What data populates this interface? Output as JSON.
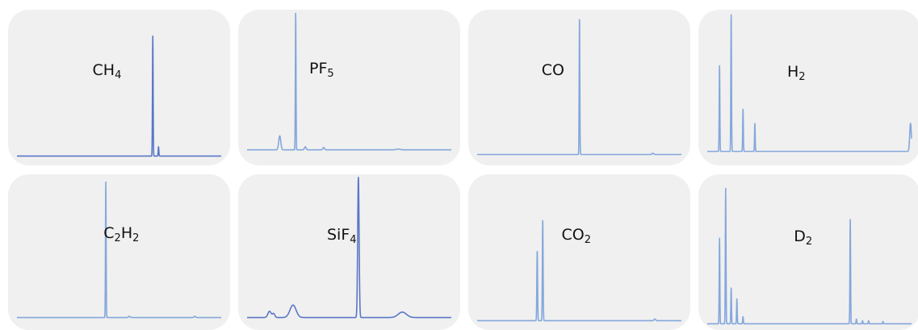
{
  "colors": {
    "panel_bg": "#f0f0f0",
    "trace_dark": "#5a77c8",
    "trace_light": "#84a7dc"
  },
  "chart_data": [
    {
      "type": "line",
      "label_base": [
        "CH",
        ""
      ],
      "label_sub": [
        "4",
        ""
      ],
      "trace": "trace_dark",
      "baseline": 0.06,
      "peaks": [
        {
          "x": 0.665,
          "h": 0.77,
          "w": 0.0016
        },
        {
          "x": 0.693,
          "h": 0.06,
          "w": 0.0016
        }
      ],
      "bumps": []
    },
    {
      "type": "line",
      "label_base": [
        "PF",
        ""
      ],
      "label_sub": [
        "5",
        ""
      ],
      "trace": "trace_light",
      "baseline": 0.1,
      "peaks": [
        {
          "x": 0.238,
          "h": 0.88,
          "w": 0.0016
        }
      ],
      "bumps": [
        {
          "x": 0.16,
          "h": 0.09,
          "w": 0.005
        },
        {
          "x": 0.285,
          "h": 0.02,
          "w": 0.004
        },
        {
          "x": 0.375,
          "h": 0.015,
          "w": 0.004
        },
        {
          "x": 0.74,
          "h": 0.005,
          "w": 0.01
        }
      ]
    },
    {
      "type": "line",
      "label_base": [
        "CO",
        ""
      ],
      "label_sub": [
        "",
        ""
      ],
      "trace": "trace_light",
      "baseline": 0.07,
      "peaks": [
        {
          "x": 0.501,
          "h": 0.88,
          "w": 0.0016
        }
      ],
      "bumps": [
        {
          "x": 0.86,
          "h": 0.008,
          "w": 0.004
        }
      ]
    },
    {
      "type": "line",
      "label_base": [
        "H",
        ""
      ],
      "label_sub": [
        "2",
        ""
      ],
      "trace": "trace_light",
      "baseline": 0.09,
      "peaks": [
        {
          "x": 0.06,
          "h": 0.55,
          "w": 0.0016
        },
        {
          "x": 0.117,
          "h": 0.88,
          "w": 0.0016
        },
        {
          "x": 0.175,
          "h": 0.27,
          "w": 0.0016
        },
        {
          "x": 0.233,
          "h": 0.18,
          "w": 0.0016
        },
        {
          "x": 0.995,
          "h": 0.18,
          "w": 0.004
        }
      ],
      "bumps": []
    },
    {
      "type": "line",
      "label_base": [
        "C",
        "H"
      ],
      "label_sub": [
        "2",
        "2"
      ],
      "trace": "trace_light",
      "baseline": 0.08,
      "peaks": [
        {
          "x": 0.435,
          "h": 0.87,
          "w": 0.0016
        }
      ],
      "bumps": [
        {
          "x": 0.55,
          "h": 0.008,
          "w": 0.004
        },
        {
          "x": 0.87,
          "h": 0.008,
          "w": 0.004
        }
      ]
    },
    {
      "type": "line",
      "label_base": [
        "SiF",
        ""
      ],
      "label_sub": [
        "4",
        ""
      ],
      "trace": "trace_dark",
      "baseline": 0.08,
      "peaks": [
        {
          "x": 0.545,
          "h": 0.9,
          "w": 0.0035
        }
      ],
      "bumps": [
        {
          "x": 0.11,
          "h": 0.04,
          "w": 0.008
        },
        {
          "x": 0.13,
          "h": 0.025,
          "w": 0.006
        },
        {
          "x": 0.225,
          "h": 0.08,
          "w": 0.015
        },
        {
          "x": 0.76,
          "h": 0.035,
          "w": 0.02
        }
      ]
    },
    {
      "type": "line",
      "label_base": [
        "CO",
        ""
      ],
      "label_sub": [
        "2",
        ""
      ],
      "trace": "trace_light",
      "baseline": 0.06,
      "peaks": [
        {
          "x": 0.294,
          "h": 0.45,
          "w": 0.0018
        },
        {
          "x": 0.321,
          "h": 0.65,
          "w": 0.0018
        }
      ],
      "bumps": [
        {
          "x": 0.87,
          "h": 0.01,
          "w": 0.004
        }
      ]
    },
    {
      "type": "line",
      "label_base": [
        "D",
        ""
      ],
      "label_sub": [
        "2",
        ""
      ],
      "trace": "trace_light",
      "baseline": 0.04,
      "peaks": [
        {
          "x": 0.06,
          "h": 0.55,
          "w": 0.0016
        },
        {
          "x": 0.09,
          "h": 0.87,
          "w": 0.0016
        },
        {
          "x": 0.117,
          "h": 0.23,
          "w": 0.0016
        },
        {
          "x": 0.145,
          "h": 0.16,
          "w": 0.0016
        },
        {
          "x": 0.175,
          "h": 0.045,
          "w": 0.0016
        },
        {
          "x": 0.7,
          "h": 0.67,
          "w": 0.0016
        },
        {
          "x": 0.73,
          "h": 0.03,
          "w": 0.0016
        },
        {
          "x": 0.76,
          "h": 0.02,
          "w": 0.0016
        },
        {
          "x": 0.79,
          "h": 0.02,
          "w": 0.0016
        },
        {
          "x": 0.86,
          "h": 0.015,
          "w": 0.0016
        }
      ],
      "bumps": []
    }
  ]
}
